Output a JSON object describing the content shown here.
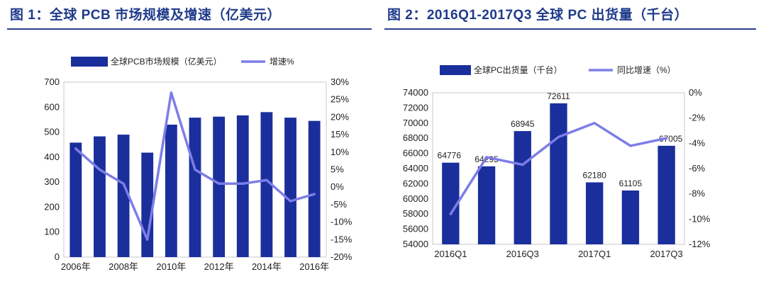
{
  "figure1": {
    "title": "图 1：全球 PCB 市场规模及增速（亿美元）",
    "legend": {
      "bar": "全球PCB市场规模（亿美元）",
      "line": "增速%"
    }
  },
  "figure2": {
    "title": "图 2：2016Q1-2017Q3 全球 PC 出货量（千台）",
    "legend": {
      "bar": "全球PC出货量（千台）",
      "line": "同比增速（%）"
    }
  },
  "chart_data": [
    {
      "type": "bar",
      "title": "全球 PCB 市场规模及增速（亿美元）",
      "categories": [
        "2006年",
        "2007年",
        "2008年",
        "2009年",
        "2010年",
        "2011年",
        "2012年",
        "2013年",
        "2014年",
        "2015年",
        "2016年"
      ],
      "x_tick_labels": [
        "2006年",
        "2008年",
        "2010年",
        "2012年",
        "2014年",
        "2016年"
      ],
      "series": [
        {
          "name": "全球PCB市场规模（亿美元）",
          "kind": "bar",
          "axis": "left",
          "color": "#1a2f9c",
          "values": [
            458,
            483,
            490,
            418,
            530,
            558,
            562,
            567,
            580,
            558,
            545
          ]
        },
        {
          "name": "增速%",
          "kind": "line",
          "axis": "right",
          "color": "#7d7de8",
          "values": [
            11,
            5,
            1,
            -15,
            27,
            5,
            1,
            1,
            2,
            -4,
            -2
          ]
        }
      ],
      "y_left": {
        "min": 0,
        "max": 700,
        "step": 100,
        "tick_labels": [
          "0",
          "100",
          "200",
          "300",
          "400",
          "500",
          "600",
          "700"
        ]
      },
      "y_right": {
        "min": -20,
        "max": 30,
        "step": 5,
        "tick_labels": [
          "-20%",
          "-15%",
          "-10%",
          "-5%",
          "0%",
          "5%",
          "10%",
          "15%",
          "20%",
          "25%",
          "30%"
        ]
      },
      "legend_position": "top"
    },
    {
      "type": "bar",
      "title": "2016Q1-2017Q3 全球 PC 出货量（千台）",
      "categories": [
        "2016Q1",
        "2016Q2",
        "2016Q3",
        "2016Q4",
        "2017Q1",
        "2017Q2",
        "2017Q3"
      ],
      "x_tick_labels": [
        "2016Q1",
        "",
        "2016Q3",
        "",
        "2017Q1",
        "",
        "2017Q3"
      ],
      "series": [
        {
          "name": "全球PC出货量（千台）",
          "kind": "bar",
          "axis": "left",
          "color": "#1a2f9c",
          "values": [
            64776,
            64295,
            68945,
            72611,
            62180,
            61105,
            67005
          ],
          "data_labels": [
            "64776",
            "64295",
            "68945",
            "72611",
            "62180",
            "61105",
            "67005"
          ]
        },
        {
          "name": "同比增速（%）",
          "kind": "line",
          "axis": "right",
          "color": "#7d7de8",
          "values": [
            -9.6,
            -5.1,
            -5.7,
            -3.5,
            -2.4,
            -4.2,
            -3.6
          ]
        }
      ],
      "y_left": {
        "min": 54000,
        "max": 74000,
        "step": 2000,
        "tick_labels": [
          "54000",
          "56000",
          "58000",
          "60000",
          "62000",
          "64000",
          "66000",
          "68000",
          "70000",
          "72000",
          "74000"
        ]
      },
      "y_right": {
        "min": -12,
        "max": 0,
        "step": 2,
        "tick_labels": [
          "-12%",
          "-10%",
          "-8%",
          "-6%",
          "-4%",
          "-2%",
          "0%"
        ]
      },
      "legend_position": "top"
    }
  ]
}
